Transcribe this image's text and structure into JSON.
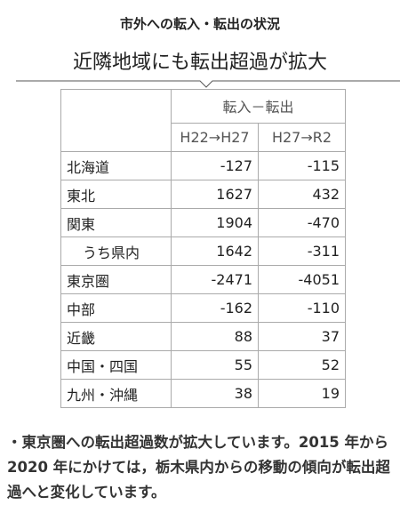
{
  "header": {
    "title": "市外への転入・転出の状況",
    "subtitle": "近隣地域にも転出超過が拡大"
  },
  "table": {
    "group_header": "転入－転出",
    "columns": [
      "H22→H27",
      "H27→R2"
    ],
    "rows": [
      {
        "name": "北海道",
        "values": [
          -127,
          -115
        ]
      },
      {
        "name": "東北",
        "values": [
          1627,
          432
        ]
      },
      {
        "name": "関東",
        "values": [
          1904,
          -470
        ]
      },
      {
        "name": "うち県内",
        "values": [
          1642,
          -311
        ]
      },
      {
        "name": "東京圏",
        "values": [
          -2471,
          -4051
        ]
      },
      {
        "name": "中部",
        "values": [
          -162,
          -110
        ]
      },
      {
        "name": "近畿",
        "values": [
          88,
          37
        ]
      },
      {
        "name": "中国・四国",
        "values": [
          55,
          52
        ]
      },
      {
        "name": "九州・沖縄",
        "values": [
          38,
          19
        ]
      }
    ]
  },
  "note": "・東京圏への転出超過数が拡大しています。2015 年から 2020 年にかけては，栃木県内からの移動の傾向が転出超過へと変化しています。"
}
